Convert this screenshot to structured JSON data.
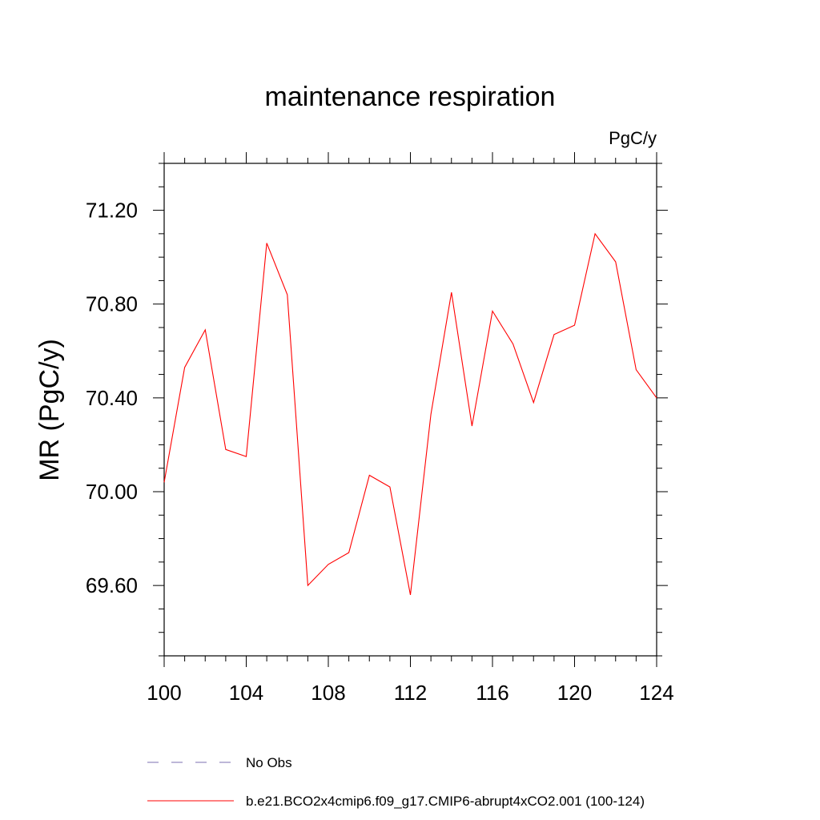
{
  "chart_data": {
    "type": "line",
    "title": "maintenance respiration",
    "units_label": "PgC/y",
    "ylabel": "MR  (PgC/y)",
    "xlabel": "",
    "xlim": [
      100,
      124
    ],
    "ylim": [
      69.3,
      71.4
    ],
    "x_ticks": [
      100,
      104,
      108,
      112,
      116,
      120,
      124
    ],
    "x_tick_labels": [
      "100",
      "104",
      "108",
      "112",
      "116",
      "120",
      "124"
    ],
    "y_ticks": [
      69.6,
      70.0,
      70.4,
      70.8,
      71.2
    ],
    "y_tick_labels": [
      "69.60",
      "70.00",
      "70.40",
      "70.80",
      "71.20"
    ],
    "grid": false,
    "legend_position": "bottom",
    "series": [
      {
        "name": "b.e21.BCO2x4cmip6.f09_g17.CMIP6-abrupt4xCO2.001 (100-124)",
        "color": "#ff0000",
        "style": "solid",
        "x": [
          100,
          101,
          102,
          103,
          104,
          105,
          106,
          107,
          108,
          109,
          110,
          111,
          112,
          113,
          114,
          115,
          116,
          117,
          118,
          119,
          120,
          121,
          122,
          123,
          124
        ],
        "values": [
          70.04,
          70.53,
          70.69,
          70.18,
          70.15,
          71.06,
          70.84,
          69.6,
          69.69,
          69.74,
          70.07,
          70.02,
          69.56,
          70.33,
          70.85,
          70.28,
          70.77,
          70.63,
          70.38,
          70.67,
          70.71,
          71.1,
          70.98,
          70.52,
          70.4
        ]
      }
    ],
    "legend": [
      {
        "label": "No Obs",
        "color": "#7b6fb0",
        "style": "dashed"
      },
      {
        "label": "b.e21.BCO2x4cmip6.f09_g17.CMIP6-abrupt4xCO2.001 (100-124)",
        "color": "#ff0000",
        "style": "solid"
      }
    ]
  }
}
